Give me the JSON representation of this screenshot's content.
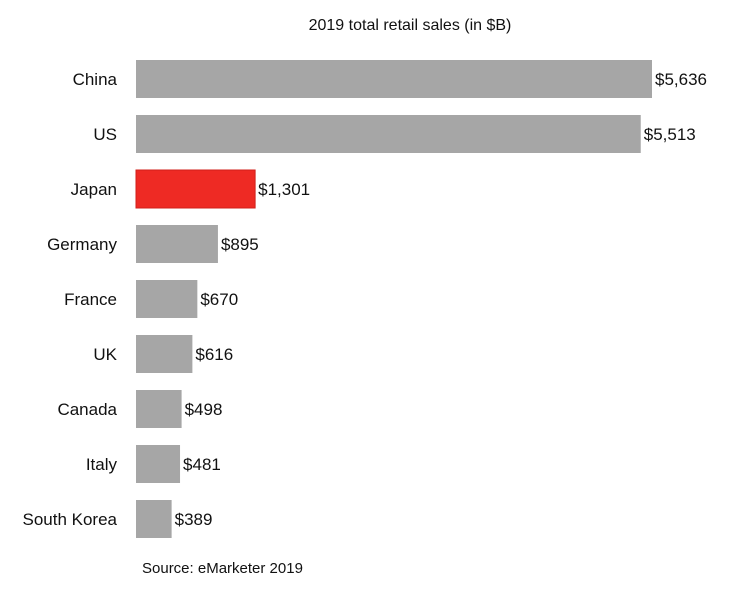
{
  "chart_data": {
    "type": "bar",
    "orientation": "horizontal",
    "title": "2019 total retail sales (in $B)",
    "categories": [
      "China",
      "US",
      "Japan",
      "Germany",
      "France",
      "UK",
      "Canada",
      "Italy",
      "South Korea"
    ],
    "values": [
      5636,
      5513,
      1301,
      895,
      670,
      616,
      498,
      481,
      389
    ],
    "data_labels": [
      "$5,636",
      "$5,513",
      "$1,301",
      "$895",
      "$670",
      "$616",
      "$498",
      "$481",
      "$389"
    ],
    "highlight": "Japan",
    "colors": {
      "default": "#a6a6a6",
      "highlight": "#ee2a24",
      "highlight_border": "#d11f1a"
    },
    "xlim": [
      0,
      5636
    ],
    "grid": false,
    "source": "Source: eMarketer 2019"
  }
}
